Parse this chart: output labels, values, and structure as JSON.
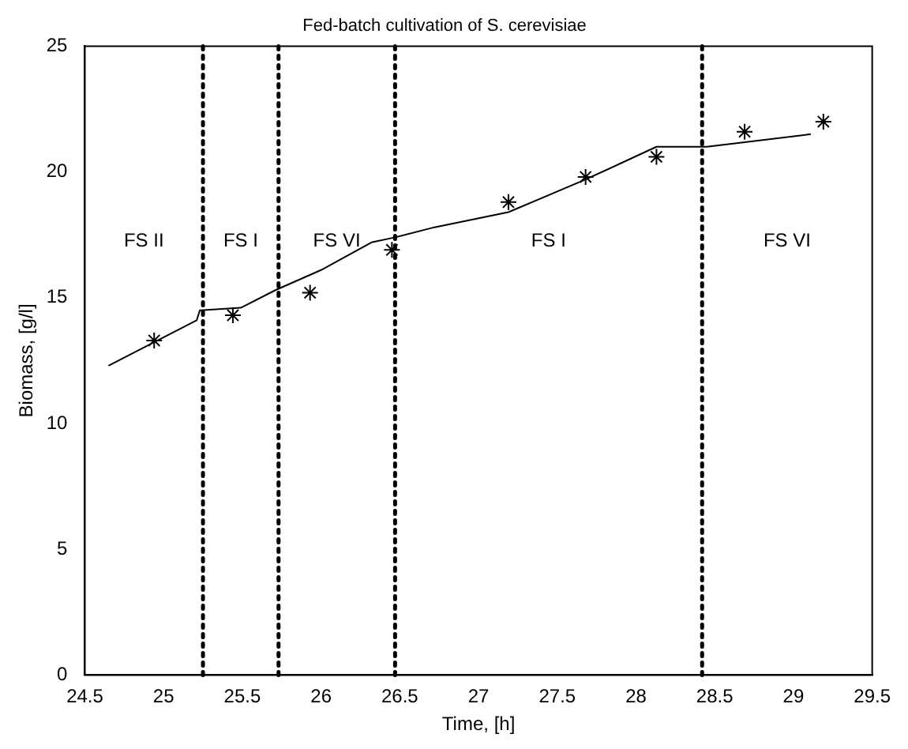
{
  "chart_data": {
    "type": "line",
    "title": "Fed-batch cultivation of S. cerevisiae",
    "xlabel": "Time, [h]",
    "ylabel": "Biomass, [g/l]",
    "xlim": [
      24.5,
      29.5
    ],
    "xticks": [
      24.5,
      25,
      25.5,
      26,
      26.5,
      27,
      27.5,
      28,
      28.5,
      29,
      29.5
    ],
    "ylim": [
      0,
      25
    ],
    "yticks": [
      0,
      5,
      10,
      15,
      20,
      25
    ],
    "grid": false,
    "legend": false,
    "series": [
      {
        "type": "line",
        "color": "#000000",
        "marker": "none",
        "line_style": "solid",
        "x": [
          24.65,
          24.93,
          25.21,
          25.23,
          25.49,
          25.71,
          26.0,
          26.32,
          26.47,
          26.72,
          27.19,
          27.68,
          28.13,
          28.45,
          29.11
        ],
        "values": [
          12.3,
          13.2,
          14.1,
          14.5,
          14.6,
          15.3,
          16.1,
          17.2,
          17.4,
          17.8,
          18.4,
          19.7,
          21.0,
          21.0,
          21.5
        ]
      },
      {
        "type": "scatter",
        "color": "#000000",
        "marker": "cross",
        "x": [
          24.94,
          25.44,
          25.93,
          26.45,
          27.19,
          27.68,
          28.13,
          28.69,
          29.19
        ],
        "values": [
          13.3,
          14.3,
          15.2,
          16.9,
          18.8,
          19.8,
          20.6,
          21.6,
          22.0
        ]
      }
    ],
    "ref_lines": [
      {
        "axis": "x",
        "value": 25.25,
        "color": "#000000",
        "line_style": "dotted"
      },
      {
        "axis": "x",
        "value": 25.73,
        "color": "#000000",
        "line_style": "dotted"
      },
      {
        "axis": "x",
        "value": 26.47,
        "color": "#000000",
        "line_style": "dotted"
      },
      {
        "axis": "x",
        "value": 28.42,
        "color": "#000000",
        "line_style": "dotted"
      }
    ],
    "annotations": [
      "FS II",
      "FS I",
      "FS VI",
      "FS I",
      "FS VI"
    ]
  }
}
